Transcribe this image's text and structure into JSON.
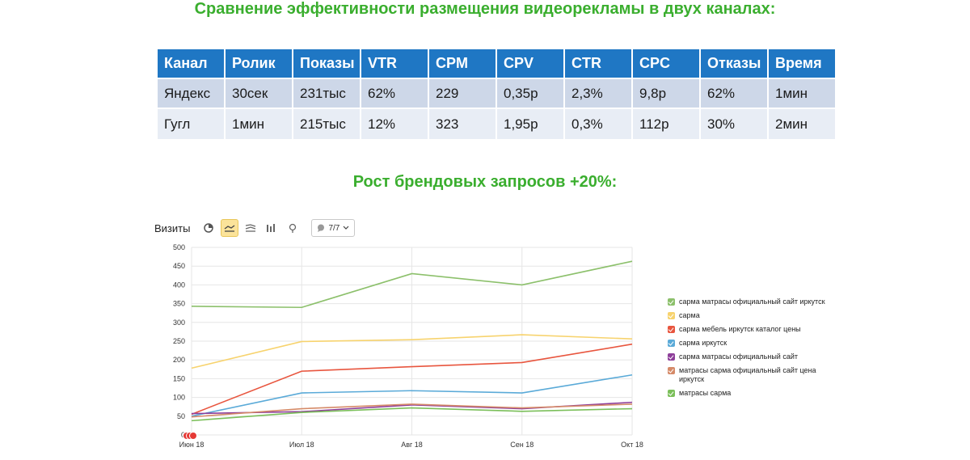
{
  "headings": {
    "top": "Сравнение эффективности размещения видеорекламы в двух каналах:",
    "growth": "Рост брендовых запросов +20%:"
  },
  "colors": {
    "heading": "#3aae2e",
    "table_header": "#1f77c4"
  },
  "table": {
    "headers": [
      "Канал",
      "Ролик",
      "Показы",
      "VTR",
      "CPM",
      "CPV",
      "CTR",
      "CPC",
      "Отказы",
      "Время"
    ],
    "rows": [
      [
        "Яндекс",
        "30сек",
        "231тыс",
        "62%",
        "229",
        "0,35р",
        "2,3%",
        "9,8р",
        "62%",
        "1мин"
      ],
      [
        "Гугл",
        "1мин",
        "215тыс",
        "12%",
        "323",
        "1,95р",
        "0,3%",
        "112р",
        "30%",
        "2мин"
      ]
    ]
  },
  "toolbar": {
    "title": "Визиты",
    "icons": [
      "pie-chart-icon",
      "line-chart-icon",
      "stacked-area-icon",
      "bar-chart-icon",
      "map-pin-icon"
    ],
    "active_icon": "line-chart-icon",
    "series_selector": "7/7"
  },
  "chart_data": {
    "type": "line",
    "x": [
      "Июн 18",
      "Июл 18",
      "Авг 18",
      "Сен 18",
      "Окт 18"
    ],
    "ylim": [
      0,
      500
    ],
    "yticks": [
      0,
      50,
      100,
      150,
      200,
      250,
      300,
      350,
      400,
      450,
      500
    ],
    "grid": true,
    "legend_position": "right",
    "series": [
      {
        "name": "сарма матрасы официальный сайт иркутск",
        "color": "#8cc06b",
        "values": [
          343,
          340,
          430,
          400,
          463
        ]
      },
      {
        "name": "сарма",
        "color": "#f7d36e",
        "values": [
          178,
          249,
          254,
          267,
          256
        ]
      },
      {
        "name": "сарма мебель иркутск каталог цены",
        "color": "#e8553e",
        "values": [
          55,
          170,
          182,
          193,
          242
        ]
      },
      {
        "name": "сарма иркутск",
        "color": "#5aaad8",
        "values": [
          50,
          112,
          118,
          112,
          160
        ]
      },
      {
        "name": "сарма матрасы официальный сайт",
        "color": "#8e3f9a",
        "values": [
          57,
          62,
          80,
          70,
          87
        ]
      },
      {
        "name": "матрасы сарма официальный сайт цена иркутск",
        "color": "#d58a68",
        "values": [
          48,
          70,
          82,
          72,
          82
        ]
      },
      {
        "name": "матрасы сарма",
        "color": "#7bbf5a",
        "values": [
          38,
          60,
          72,
          63,
          70
        ]
      }
    ]
  }
}
